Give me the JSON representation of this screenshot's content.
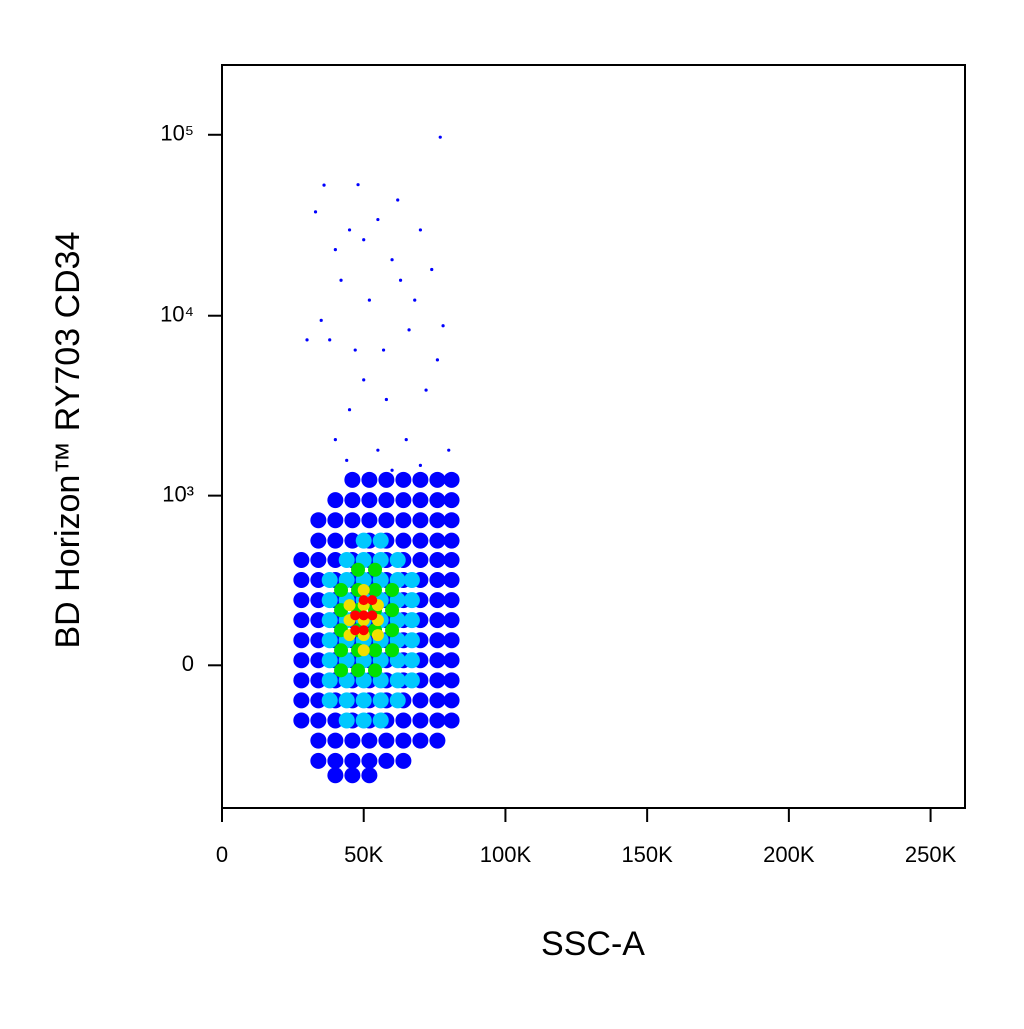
{
  "chart_data": {
    "type": "scatter",
    "xlabel": "SSC-A",
    "ylabel": "BD Horizon™ RY703 CD34",
    "xlim": [
      0,
      262144
    ],
    "xticks": [
      0,
      {
        "value": 50000,
        "label": "50K"
      },
      {
        "value": 100000,
        "label": "100K"
      },
      {
        "value": 150000,
        "label": "150K"
      },
      {
        "value": 200000,
        "label": "200K"
      },
      {
        "value": 250000,
        "label": "250K"
      }
    ],
    "ylim": [
      -700,
      243000
    ],
    "yscale": "arcsinh",
    "ycofactor": 234,
    "yticks": [
      0,
      {
        "value": 1000,
        "label": "10³"
      },
      {
        "value": 10000,
        "label": "10⁴"
      },
      {
        "value": 100000,
        "label": "10⁵"
      }
    ],
    "series": [
      {
        "color": "#0000ff",
        "marker_size": 8,
        "x": [
          28000,
          28000,
          28000,
          28000,
          28000,
          28000,
          28000,
          28000,
          28000,
          34000,
          34000,
          34000,
          34000,
          34000,
          34000,
          34000,
          34000,
          34000,
          34000,
          34000,
          34000,
          34000,
          40000,
          40000,
          40000,
          40000,
          40000,
          40000,
          40000,
          40000,
          40000,
          40000,
          40000,
          40000,
          40000,
          40000,
          40000,
          46000,
          46000,
          46000,
          46000,
          46000,
          46000,
          46000,
          46000,
          46000,
          46000,
          46000,
          46000,
          46000,
          46000,
          46000,
          46000,
          52000,
          52000,
          52000,
          52000,
          52000,
          52000,
          52000,
          52000,
          52000,
          52000,
          52000,
          52000,
          52000,
          52000,
          52000,
          52000,
          58000,
          58000,
          58000,
          58000,
          58000,
          58000,
          58000,
          58000,
          58000,
          58000,
          58000,
          58000,
          58000,
          58000,
          58000,
          64000,
          64000,
          64000,
          64000,
          64000,
          64000,
          64000,
          64000,
          64000,
          64000,
          64000,
          64000,
          64000,
          64000,
          64000,
          70000,
          70000,
          70000,
          70000,
          70000,
          70000,
          70000,
          70000,
          70000,
          70000,
          70000,
          70000,
          70000,
          70000,
          76000,
          76000,
          76000,
          76000,
          76000,
          76000,
          76000,
          76000,
          76000,
          76000,
          76000,
          76000,
          76000,
          76000,
          81000,
          81000,
          81000,
          81000,
          81000,
          81000,
          81000,
          81000,
          81000,
          81000,
          81000,
          81000,
          81000
        ],
        "values": [
          416,
          307,
          217,
          142,
          76,
          15,
          -45,
          -108,
          -178,
          723,
          548,
          416,
          307,
          217,
          142,
          76,
          15,
          -45,
          -108,
          -178,
          -260,
          -360,
          943,
          723,
          548,
          416,
          307,
          217,
          142,
          76,
          15,
          -45,
          -108,
          -178,
          -260,
          -360,
          -445,
          1228,
          943,
          723,
          548,
          416,
          307,
          217,
          142,
          76,
          15,
          -45,
          -108,
          -178,
          -260,
          -360,
          -445,
          1228,
          943,
          723,
          548,
          416,
          307,
          217,
          142,
          76,
          15,
          -45,
          -108,
          -178,
          -260,
          -360,
          -445,
          1228,
          943,
          723,
          548,
          416,
          307,
          217,
          142,
          76,
          15,
          -45,
          -108,
          -178,
          -260,
          -360,
          1228,
          943,
          723,
          548,
          416,
          307,
          217,
          142,
          76,
          15,
          -45,
          -108,
          -178,
          -260,
          -360,
          1228,
          943,
          723,
          548,
          416,
          307,
          217,
          142,
          76,
          15,
          -45,
          -108,
          -178,
          -260,
          1228,
          943,
          723,
          548,
          416,
          307,
          217,
          142,
          76,
          15,
          -45,
          -108,
          -178,
          -260,
          1228,
          943,
          723,
          548,
          416,
          307,
          217,
          142,
          76,
          15,
          -45,
          -108,
          -178
        ]
      },
      {
        "color": "#00c8ff",
        "marker_size": 8,
        "x": [
          38000,
          38000,
          38000,
          38000,
          38000,
          38000,
          38000,
          44000,
          44000,
          44000,
          44000,
          44000,
          44000,
          44000,
          44000,
          44000,
          50000,
          50000,
          50000,
          50000,
          50000,
          50000,
          50000,
          50000,
          50000,
          50000,
          56000,
          56000,
          56000,
          56000,
          56000,
          56000,
          56000,
          56000,
          56000,
          56000,
          62000,
          62000,
          62000,
          62000,
          62000,
          62000,
          62000,
          62000,
          67000,
          67000,
          67000,
          67000,
          67000,
          67000
        ],
        "values": [
          307,
          217,
          142,
          76,
          15,
          -45,
          -108,
          416,
          307,
          217,
          142,
          76,
          15,
          -45,
          -108,
          -178,
          548,
          416,
          307,
          217,
          142,
          76,
          15,
          -45,
          -108,
          -178,
          548,
          416,
          307,
          217,
          142,
          76,
          15,
          -45,
          -108,
          -178,
          416,
          307,
          217,
          142,
          76,
          15,
          -45,
          -108,
          307,
          217,
          142,
          76,
          15,
          -45
        ]
      },
      {
        "color": "#00e000",
        "marker_size": 7,
        "x": [
          42000,
          42000,
          42000,
          42000,
          42000,
          48000,
          48000,
          48000,
          48000,
          48000,
          48000,
          54000,
          54000,
          54000,
          54000,
          54000,
          54000,
          60000,
          60000,
          60000,
          60000
        ],
        "values": [
          260,
          178,
          108,
          45,
          -15,
          360,
          260,
          178,
          108,
          45,
          -15,
          360,
          260,
          178,
          108,
          45,
          -15,
          260,
          178,
          108,
          45
        ]
      },
      {
        "color": "#f0e000",
        "marker_size": 6,
        "x": [
          45000,
          45000,
          45000,
          50000,
          50000,
          50000,
          50000,
          50000,
          55000,
          55000,
          55000
        ],
        "values": [
          197,
          142,
          92,
          260,
          197,
          142,
          92,
          45,
          197,
          142,
          92
        ]
      },
      {
        "color": "#ff0000",
        "marker_size": 5,
        "x": [
          47000,
          47000,
          50000,
          50000,
          50000,
          53000,
          53000
        ],
        "values": [
          159,
          108,
          217,
          159,
          108,
          217,
          159
        ]
      },
      {
        "color": "#0000ff",
        "marker_size": 1.6,
        "x": [
          36000,
          48000,
          33000,
          40000,
          45000,
          50000,
          55000,
          60000,
          63000,
          70000,
          74000,
          52000,
          42000,
          38000,
          66000,
          78000,
          50000,
          45000,
          58000,
          72000,
          40000,
          55000,
          65000,
          80000,
          30000,
          77000,
          62000,
          35000,
          68000,
          57000,
          47000,
          76000,
          44000,
          60000,
          70000
        ],
        "values": [
          52700,
          53000,
          37500,
          23200,
          29800,
          26300,
          34000,
          20400,
          15700,
          29800,
          18000,
          12200,
          15700,
          7350,
          8350,
          8800,
          4420,
          3020,
          3440,
          3880,
          2060,
          1800,
          2060,
          1800,
          7350,
          97000,
          43600,
          9430,
          12200,
          6460,
          6460,
          5700,
          1580,
          1390,
          1480
        ]
      }
    ]
  }
}
